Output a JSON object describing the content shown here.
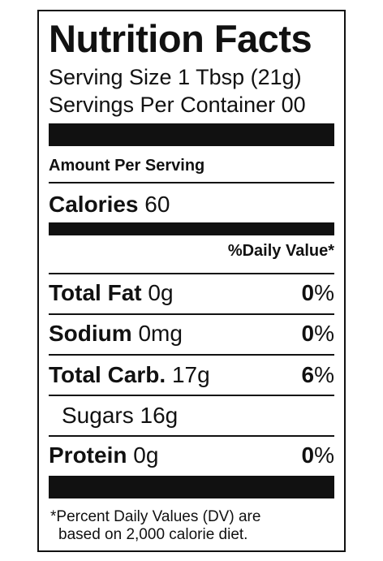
{
  "title": "Nutrition Facts",
  "serving_size": "Serving Size 1 Tbsp (21g)",
  "servings_per_container": "Servings Per Container 00",
  "amount_per_serving": "Amount Per Serving",
  "calories": {
    "label": "Calories",
    "value": "60"
  },
  "daily_value_header": "%Daily Value*",
  "nutrients": [
    {
      "name": "Total Fat",
      "amount": "0g",
      "dv_number": "0",
      "dv_sign": "%"
    },
    {
      "name": "Sodium",
      "amount": "0mg",
      "dv_number": "0",
      "dv_sign": "%"
    },
    {
      "name": "Total Carb.",
      "amount": "17g",
      "dv_number": "6",
      "dv_sign": "%"
    },
    {
      "name": "Sugars",
      "amount": "16g"
    },
    {
      "name": "Protein",
      "amount": "0g",
      "dv_number": "0",
      "dv_sign": "%"
    }
  ],
  "footnote": {
    "line1": "*Percent Daily Values (DV) are",
    "line2": "based on 2,000 calorie diet."
  }
}
